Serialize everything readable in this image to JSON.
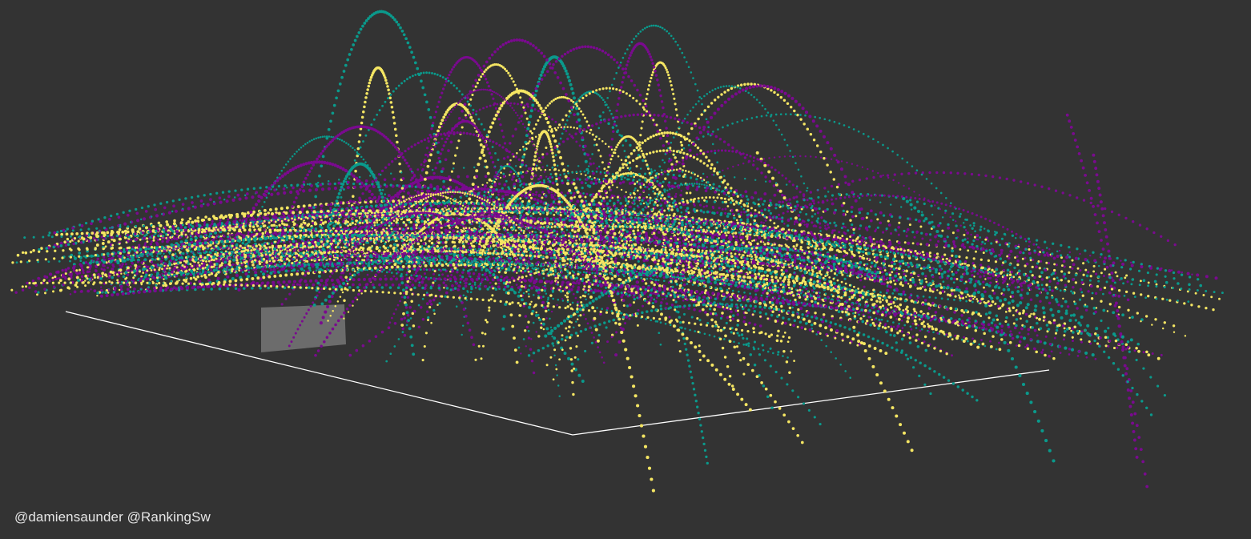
{
  "credit": "@damiensaunder @RankingSw",
  "colors": {
    "background": "#333333",
    "series": [
      "#7a0a8f",
      "#0a9a8c",
      "#f5e663"
    ],
    "court_outline": "#ffffff",
    "court_panel": "#9a9a9a"
  },
  "chart_data": {
    "type": "scatter",
    "subtype": "3d-trajectories",
    "title": "",
    "xlabel": "",
    "ylabel": "",
    "grid": false,
    "legend": "none",
    "series": [
      {
        "color": "#7a0a8f",
        "trajectory_count": 60
      },
      {
        "color": "#0a9a8c",
        "trajectory_count": 55
      },
      {
        "color": "#f5e663",
        "trajectory_count": 60
      }
    ]
  }
}
